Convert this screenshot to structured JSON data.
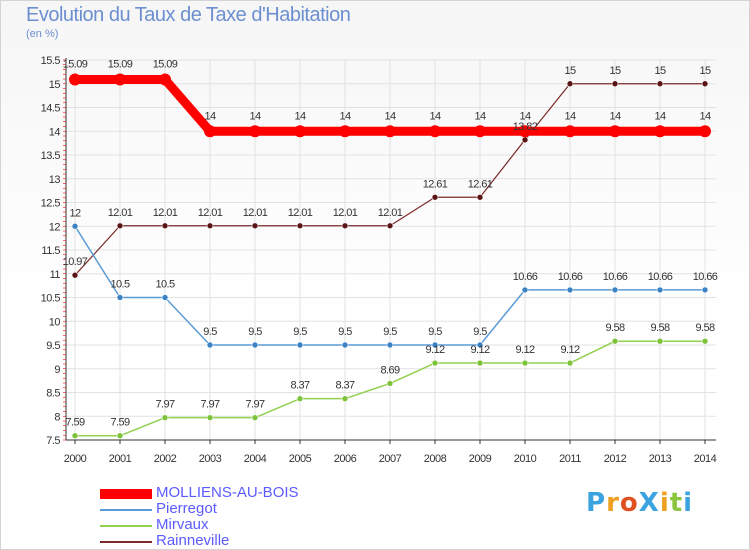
{
  "title": "Evolution du Taux de Taxe d'Habitation",
  "subtitle": "(en %)",
  "colors": {
    "MOLLIENS-AU-BOIS": "#ff0000",
    "Pierregot": "#5b9bd5",
    "Mirvaux": "#92d050",
    "Rainneville": "#7b2a2a"
  },
  "legend": [
    {
      "name": "MOLLIENS-AU-BOIS",
      "text_color": "#5b5bff"
    },
    {
      "name": "Pierregot",
      "text_color": "#5b5bff"
    },
    {
      "name": "Mirvaux",
      "text_color": "#5b5bff"
    },
    {
      "name": "Rainneville",
      "text_color": "#5b5bff"
    }
  ],
  "logo": {
    "text": "ProXiti"
  },
  "chart_data": {
    "type": "line",
    "title": "Evolution du Taux de Taxe d'Habitation",
    "ylabel": "(en %)",
    "xlabel": "",
    "ylim": [
      7.5,
      15.5
    ],
    "yticks": [
      "7.5",
      "8",
      "8.5",
      "9",
      "9.5",
      "10",
      "10.5",
      "11",
      "11.5",
      "12",
      "12.5",
      "13",
      "13.5",
      "14",
      "14.5",
      "15",
      "15.5"
    ],
    "categories": [
      "2000",
      "2001",
      "2002",
      "2003",
      "2004",
      "2005",
      "2006",
      "2007",
      "2008",
      "2009",
      "2010",
      "2011",
      "2012",
      "2013",
      "2014"
    ],
    "series": [
      {
        "name": "MOLLIENS-AU-BOIS",
        "values": [
          15.09,
          15.09,
          15.09,
          14,
          14,
          14,
          14,
          14,
          14,
          14,
          14,
          14,
          14,
          14,
          14
        ],
        "labels": [
          "15.09",
          "15.09",
          "15.09",
          "14",
          "14",
          "14",
          "14",
          "14",
          "14",
          "14",
          "14",
          "14",
          "14",
          "14",
          "14"
        ]
      },
      {
        "name": "Pierregot",
        "values": [
          12,
          10.5,
          10.5,
          9.5,
          9.5,
          9.5,
          9.5,
          9.5,
          9.5,
          9.5,
          10.66,
          10.66,
          10.66,
          10.66,
          10.66
        ],
        "labels": [
          "12",
          "10.5",
          "10.5",
          "9.5",
          "9.5",
          "9.5",
          "9.5",
          "9.5",
          "9.5",
          "9.5",
          "10.66",
          "10.66",
          "10.66",
          "10.66",
          "10.66"
        ]
      },
      {
        "name": "Mirvaux",
        "values": [
          7.59,
          7.59,
          7.97,
          7.97,
          7.97,
          8.37,
          8.37,
          8.69,
          9.12,
          9.12,
          9.12,
          9.12,
          9.58,
          9.58,
          9.58
        ],
        "labels": [
          "7.59",
          "7.59",
          "7.97",
          "7.97",
          "7.97",
          "8.37",
          "8.37",
          "8.69",
          "9.12",
          "9.12",
          "9.12",
          "9.12",
          "9.58",
          "9.58",
          "9.58"
        ]
      },
      {
        "name": "Rainneville",
        "values": [
          10.97,
          12.01,
          12.01,
          12.01,
          12.01,
          12.01,
          12.01,
          12.01,
          12.61,
          12.61,
          13.82,
          15,
          15,
          15,
          15
        ],
        "labels": [
          "10.97",
          "12.01",
          "12.01",
          "12.01",
          "12.01",
          "12.01",
          "12.01",
          "12.01",
          "12.61",
          "12.61",
          "13.82",
          "15",
          "15",
          "15",
          "15"
        ]
      }
    ]
  }
}
